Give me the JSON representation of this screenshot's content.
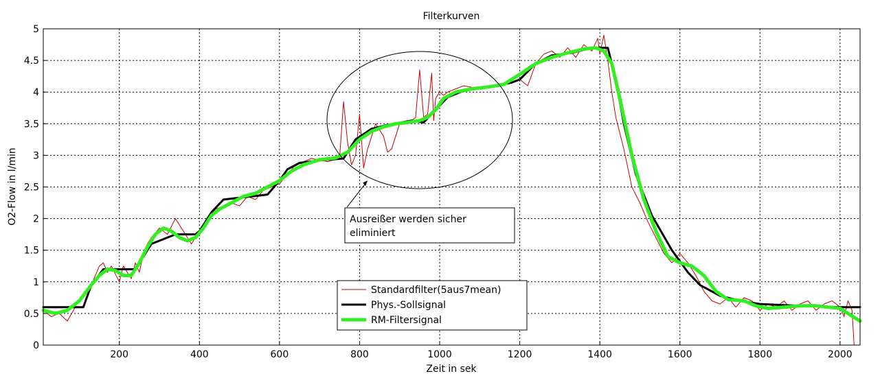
{
  "chart_data": {
    "type": "line",
    "title": "Filterkurven",
    "xlabel": "Zeit in sek",
    "ylabel": "O2-Flow in l/min",
    "xlim": [
      10,
      2050
    ],
    "ylim": [
      0,
      5
    ],
    "xticks": [
      "200",
      "400",
      "600",
      "800",
      "1000",
      "1200",
      "1400",
      "1600",
      "1800",
      "2000"
    ],
    "yticks": [
      "0",
      "0.5",
      "1",
      "1.5",
      "2",
      "2.5",
      "3",
      "3.5",
      "4",
      "4.5",
      "5"
    ],
    "grid": true,
    "legend_position": "bottom-center",
    "series": [
      {
        "name": "Standardfilter(5aus7mean)",
        "color": "#cc0000",
        "x": [
          10,
          30,
          50,
          70,
          90,
          110,
          120,
          130,
          150,
          160,
          170,
          180,
          200,
          210,
          230,
          240,
          250,
          260,
          270,
          280,
          300,
          320,
          340,
          350,
          360,
          380,
          390,
          400,
          410,
          440,
          460,
          480,
          500,
          520,
          540,
          560,
          580,
          600,
          640,
          680,
          720,
          750,
          760,
          770,
          780,
          790,
          800,
          810,
          820,
          840,
          860,
          870,
          880,
          890,
          900,
          920,
          940,
          950,
          960,
          970,
          980,
          985,
          990,
          1000,
          1010,
          1020,
          1040,
          1060,
          1100,
          1140,
          1180,
          1200,
          1220,
          1240,
          1260,
          1280,
          1300,
          1320,
          1340,
          1360,
          1380,
          1395,
          1400,
          1410,
          1420,
          1430,
          1440,
          1460,
          1480,
          1500,
          1520,
          1540,
          1560,
          1580,
          1600,
          1620,
          1640,
          1660,
          1680,
          1700,
          1720,
          1740,
          1760,
          1780,
          1800,
          1820,
          1840,
          1860,
          1880,
          1900,
          1920,
          1940,
          1960,
          1980,
          2000,
          2010,
          2020,
          2030,
          2035
        ],
        "y": [
          0.55,
          0.45,
          0.5,
          0.38,
          0.6,
          0.6,
          0.75,
          0.95,
          1.25,
          1.3,
          1.15,
          1.25,
          1.0,
          1.25,
          1.05,
          1.3,
          1.15,
          1.45,
          1.6,
          1.7,
          1.85,
          1.75,
          2.0,
          1.9,
          1.8,
          1.6,
          1.7,
          1.75,
          1.85,
          2.15,
          2.2,
          2.25,
          2.2,
          2.35,
          2.3,
          2.45,
          2.5,
          2.55,
          2.85,
          2.95,
          2.9,
          2.95,
          3.85,
          3.2,
          2.85,
          3.0,
          3.65,
          2.8,
          3.1,
          3.5,
          3.3,
          3.05,
          3.1,
          3.3,
          3.5,
          3.5,
          3.6,
          4.35,
          3.6,
          3.65,
          4.3,
          3.55,
          3.9,
          4.0,
          3.95,
          4.0,
          4.05,
          4.1,
          4.05,
          4.1,
          4.15,
          4.2,
          4.1,
          4.45,
          4.6,
          4.65,
          4.55,
          4.7,
          4.55,
          4.75,
          4.65,
          4.85,
          4.6,
          4.9,
          4.5,
          4.0,
          3.6,
          3.1,
          2.5,
          2.25,
          1.95,
          1.7,
          1.45,
          1.3,
          1.45,
          1.3,
          1.1,
          0.85,
          0.7,
          0.65,
          0.75,
          0.6,
          0.75,
          0.7,
          0.55,
          0.65,
          0.6,
          0.7,
          0.55,
          0.65,
          0.7,
          0.55,
          0.65,
          0.7,
          0.6,
          0.45,
          0.7,
          0.55,
          0.0
        ]
      },
      {
        "name": "Phys.-Sollsignal",
        "color": "#000000",
        "x": [
          10,
          110,
          130,
          160,
          220,
          240,
          280,
          340,
          390,
          400,
          430,
          460,
          570,
          600,
          620,
          650,
          700,
          760,
          790,
          830,
          870,
          930,
          960,
          990,
          1020,
          1060,
          1100,
          1140,
          1180,
          1200,
          1240,
          1280,
          1330,
          1380,
          1420,
          1440,
          1460,
          1490,
          1530,
          1580,
          1620,
          1650,
          1700,
          1750,
          1800,
          1900,
          2000,
          2050
        ],
        "y": [
          0.6,
          0.6,
          0.95,
          1.2,
          1.2,
          1.2,
          1.6,
          1.75,
          1.75,
          1.8,
          2.1,
          2.3,
          2.38,
          2.6,
          2.78,
          2.88,
          2.92,
          2.95,
          3.25,
          3.42,
          3.48,
          3.55,
          3.52,
          3.72,
          3.92,
          4.02,
          4.07,
          4.1,
          4.15,
          4.2,
          4.45,
          4.58,
          4.62,
          4.7,
          4.7,
          4.2,
          3.5,
          2.7,
          2.05,
          1.5,
          1.15,
          0.95,
          0.78,
          0.7,
          0.65,
          0.62,
          0.6,
          0.6
        ]
      },
      {
        "name": "RM-Filtersignal",
        "color": "#33ee22",
        "x": [
          10,
          40,
          70,
          100,
          130,
          150,
          170,
          190,
          210,
          230,
          250,
          270,
          290,
          310,
          330,
          350,
          370,
          390,
          410,
          430,
          450,
          480,
          510,
          540,
          570,
          600,
          630,
          660,
          700,
          740,
          770,
          800,
          830,
          860,
          890,
          920,
          950,
          970,
          990,
          1010,
          1040,
          1080,
          1120,
          1160,
          1200,
          1240,
          1280,
          1320,
          1360,
          1390,
          1410,
          1430,
          1450,
          1480,
          1510,
          1540,
          1570,
          1600,
          1630,
          1660,
          1690,
          1720,
          1760,
          1790,
          1820,
          1860,
          1900,
          1940,
          1970,
          2000,
          2020,
          2050
        ],
        "y": [
          0.55,
          0.5,
          0.55,
          0.7,
          0.95,
          1.1,
          1.2,
          1.18,
          1.1,
          1.1,
          1.3,
          1.55,
          1.75,
          1.85,
          1.8,
          1.7,
          1.65,
          1.7,
          1.85,
          2.05,
          2.15,
          2.25,
          2.35,
          2.4,
          2.5,
          2.6,
          2.75,
          2.85,
          2.93,
          2.96,
          3.05,
          3.25,
          3.38,
          3.45,
          3.5,
          3.52,
          3.55,
          3.6,
          3.72,
          3.9,
          4.0,
          4.05,
          4.08,
          4.12,
          4.28,
          4.45,
          4.55,
          4.62,
          4.68,
          4.7,
          4.65,
          4.45,
          3.9,
          3.0,
          2.3,
          1.8,
          1.4,
          1.3,
          1.25,
          1.1,
          0.85,
          0.72,
          0.7,
          0.62,
          0.58,
          0.6,
          0.62,
          0.62,
          0.6,
          0.58,
          0.5,
          0.38
        ]
      }
    ],
    "annotations": [
      {
        "text_lines": [
          "Ausreißer werden sicher",
          "eliminiert"
        ],
        "arrow_to": [
          820,
          2.6
        ]
      }
    ]
  }
}
